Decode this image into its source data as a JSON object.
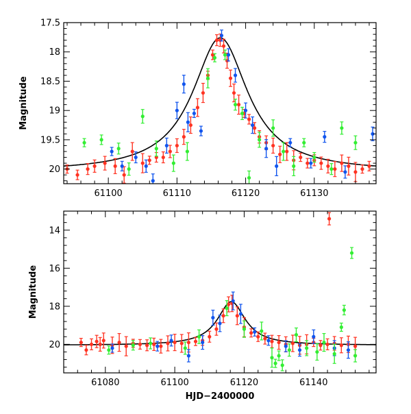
{
  "chart_data": [
    {
      "type": "scatter",
      "panel": "top",
      "xlabel": "",
      "ylabel": "Magnitude",
      "xlim": [
        61093.5,
        61139
      ],
      "ylim": [
        20.25,
        17.5
      ],
      "y_inverted": true,
      "xticks": [
        61100,
        61110,
        61120,
        61130
      ],
      "xtick_labels": [
        "61100",
        "61110",
        "61120",
        "61130"
      ],
      "yticks": [
        17.5,
        18,
        18.5,
        19,
        19.5,
        20
      ],
      "ytick_labels": [
        "17.5",
        "18",
        "18.5",
        "19",
        "19.5",
        "20"
      ],
      "model": {
        "name": "microlensing fit",
        "color": "#000000",
        "t0": 61116.3,
        "peak_mag": 17.76,
        "baseline_mag": 20.05,
        "tE": 4.9
      },
      "series": [
        {
          "name": "red",
          "color": "#ff3322",
          "points": [
            [
              61094,
              20.0
            ],
            [
              61095.5,
              20.1
            ],
            [
              61097,
              20.0
            ],
            [
              61098,
              19.95
            ],
            [
              61099.5,
              19.9
            ],
            [
              61101,
              19.95
            ],
            [
              61102.3,
              20.1
            ],
            [
              61103.5,
              19.7
            ],
            [
              61105,
              19.9
            ],
            [
              61106,
              19.85
            ],
            [
              61107,
              19.8
            ],
            [
              61108,
              19.8
            ],
            [
              61109,
              19.7
            ],
            [
              61110,
              19.6
            ],
            [
              61111,
              19.45
            ],
            [
              61112,
              19.25
            ],
            [
              61113,
              18.95
            ],
            [
              61113.8,
              18.7
            ],
            [
              61114.5,
              18.4
            ],
            [
              61115.2,
              18.05
            ],
            [
              61115.8,
              17.8
            ],
            [
              61116.3,
              17.8
            ],
            [
              61116.8,
              17.9
            ],
            [
              61117.3,
              18.15
            ],
            [
              61117.8,
              18.45
            ],
            [
              61118.3,
              18.7
            ],
            [
              61119,
              18.9
            ],
            [
              61119.8,
              19.05
            ],
            [
              61120.5,
              19.15
            ],
            [
              61121.3,
              19.3
            ],
            [
              61122,
              19.45
            ],
            [
              61123,
              19.55
            ],
            [
              61124,
              19.6
            ],
            [
              61125,
              19.75
            ],
            [
              61126,
              19.7
            ],
            [
              61127,
              19.85
            ],
            [
              61128,
              19.8
            ],
            [
              61129,
              19.9
            ],
            [
              61130,
              19.85
            ],
            [
              61131,
              19.9
            ],
            [
              61132,
              19.95
            ],
            [
              61133,
              20.0
            ],
            [
              61134,
              19.9
            ],
            [
              61135,
              19.95
            ],
            [
              61136,
              20.05
            ],
            [
              61137,
              20.0
            ],
            [
              61138,
              19.95
            ]
          ]
        },
        {
          "name": "blue",
          "color": "#1155ee",
          "points": [
            [
              61100.5,
              19.7
            ],
            [
              61102,
              19.95
            ],
            [
              61104,
              19.8
            ],
            [
              61105.5,
              19.95
            ],
            [
              61106.5,
              20.2
            ],
            [
              61108.5,
              19.6
            ],
            [
              61110,
              19.0
            ],
            [
              61111,
              18.55
            ],
            [
              61111.6,
              19.2
            ],
            [
              61112.5,
              19.05
            ],
            [
              61113.5,
              19.35
            ],
            [
              61116.5,
              17.72
            ],
            [
              61117.5,
              18.05
            ],
            [
              61118.5,
              18.4
            ],
            [
              61120,
              19.0
            ],
            [
              61121,
              19.25
            ],
            [
              61123,
              19.65
            ],
            [
              61124.5,
              19.95
            ],
            [
              61126.5,
              19.55
            ],
            [
              61129.5,
              19.9
            ],
            [
              61131.5,
              19.45
            ],
            [
              61134.5,
              20.05
            ],
            [
              61138.5,
              19.4
            ]
          ]
        },
        {
          "name": "green",
          "color": "#33ee33",
          "points": [
            [
              61096.5,
              19.55
            ],
            [
              61099,
              19.5
            ],
            [
              61101.5,
              19.65
            ],
            [
              61103,
              20.0
            ],
            [
              61105,
              19.1
            ],
            [
              61107,
              19.65
            ],
            [
              61109.5,
              19.9
            ],
            [
              61111.5,
              19.7
            ],
            [
              61114.5,
              18.45
            ],
            [
              61115.5,
              18.1
            ],
            [
              61117,
              18.05
            ],
            [
              61118.5,
              18.9
            ],
            [
              61119.5,
              19.05
            ],
            [
              61120.5,
              20.15
            ],
            [
              61122,
              19.5
            ],
            [
              61124,
              19.3
            ],
            [
              61125.5,
              19.7
            ],
            [
              61127,
              19.95
            ],
            [
              61128.5,
              19.55
            ],
            [
              61130,
              19.8
            ],
            [
              61132.5,
              20.0
            ],
            [
              61134,
              19.3
            ],
            [
              61136,
              19.55
            ]
          ]
        }
      ]
    },
    {
      "type": "scatter",
      "panel": "bottom",
      "xlabel": "HJD−2400000",
      "ylabel": "Magnitude",
      "xlim": [
        61068,
        61158
      ],
      "ylim": [
        21.5,
        13
      ],
      "y_inverted": true,
      "xticks": [
        61080,
        61100,
        61120,
        61140
      ],
      "xtick_labels": [
        "61080",
        "61100",
        "61120",
        "61140"
      ],
      "yticks": [
        14,
        16,
        18,
        20
      ],
      "ytick_labels": [
        "14",
        "16",
        "18",
        "20"
      ],
      "model": {
        "name": "microlensing fit",
        "color": "#000000",
        "t0": 61116.3,
        "peak_mag": 17.76,
        "baseline_mag": 20.05,
        "tE": 4.9
      },
      "series": [
        {
          "name": "red",
          "color": "#ff3322",
          "points": [
            [
              61073,
              19.9
            ],
            [
              61074.5,
              20.3
            ],
            [
              61076,
              20.0
            ],
            [
              61077.5,
              19.85
            ],
            [
              61078.5,
              20.0
            ],
            [
              61079.5,
              19.8
            ],
            [
              61082,
              20.05
            ],
            [
              61084,
              19.9
            ],
            [
              61086,
              20.1
            ],
            [
              61088,
              19.95
            ],
            [
              61090,
              20.0
            ],
            [
              61092,
              20.05
            ],
            [
              61094,
              20.0
            ],
            [
              61096,
              20.1
            ],
            [
              61098,
              19.95
            ],
            [
              61100,
              19.9
            ],
            [
              61102,
              19.95
            ],
            [
              61104,
              19.9
            ],
            [
              61106,
              19.85
            ],
            [
              61108,
              19.8
            ],
            [
              61110,
              19.6
            ],
            [
              61112,
              19.2
            ],
            [
              61114,
              18.5
            ],
            [
              61115.5,
              17.9
            ],
            [
              61116.5,
              17.85
            ],
            [
              61118,
              18.5
            ],
            [
              61120,
              19.1
            ],
            [
              61122,
              19.4
            ],
            [
              61124,
              19.6
            ],
            [
              61126,
              19.7
            ],
            [
              61128,
              19.85
            ],
            [
              61130,
              19.9
            ],
            [
              61132,
              20.0
            ],
            [
              61134,
              19.95
            ],
            [
              61136,
              20.05
            ],
            [
              61138,
              20.0
            ],
            [
              61140,
              19.9
            ],
            [
              61142,
              20.05
            ],
            [
              61144,
              20.0
            ],
            [
              61144.5,
              13.4
            ],
            [
              61146,
              19.95
            ],
            [
              61148,
              20.05
            ],
            [
              61150,
              20.0
            ],
            [
              61152,
              20.1
            ]
          ]
        },
        {
          "name": "blue",
          "color": "#1155ee",
          "points": [
            [
              61082,
              20.2
            ],
            [
              61095,
              20.1
            ],
            [
              61099,
              19.8
            ],
            [
              61104,
              20.6
            ],
            [
              61108,
              19.9
            ],
            [
              61111,
              18.6
            ],
            [
              61113,
              18.9
            ],
            [
              61116.8,
              17.72
            ],
            [
              61119,
              18.4
            ],
            [
              61123,
              19.35
            ],
            [
              61127,
              19.8
            ],
            [
              61132,
              20.1
            ],
            [
              61136,
              20.3
            ],
            [
              61140,
              19.6
            ],
            [
              61146,
              20.2
            ],
            [
              61150,
              20.3
            ]
          ]
        },
        {
          "name": "green",
          "color": "#33ee33",
          "points": [
            [
              61081,
              20.3
            ],
            [
              61088,
              20.05
            ],
            [
              61093,
              19.95
            ],
            [
              61103,
              20.2
            ],
            [
              61107,
              19.6
            ],
            [
              61115,
              18.1
            ],
            [
              61120,
              19.2
            ],
            [
              61125,
              19.3
            ],
            [
              61128,
              20.7
            ],
            [
              61129,
              21.0
            ],
            [
              61130,
              20.6
            ],
            [
              61131,
              21.1
            ],
            [
              61133,
              20.3
            ],
            [
              61135,
              19.5
            ],
            [
              61138,
              20.2
            ],
            [
              61141,
              20.4
            ],
            [
              61143,
              19.9
            ],
            [
              61146,
              20.5
            ],
            [
              61148,
              19.1
            ],
            [
              61148.8,
              18.2
            ],
            [
              61151,
              15.2
            ],
            [
              61152,
              20.6
            ]
          ]
        }
      ]
    }
  ]
}
